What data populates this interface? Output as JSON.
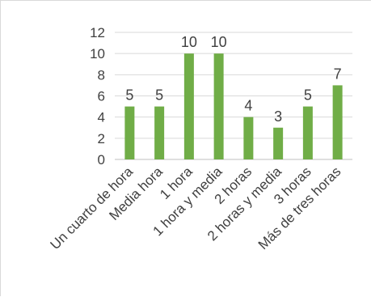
{
  "chart_data": {
    "type": "bar",
    "categories": [
      "Un cuarto de hora",
      "Media hora",
      "1 hora",
      "1 hora y media",
      "2 horas",
      "2 horas y media",
      "3 horas",
      "Más de tres horas"
    ],
    "values": [
      5,
      5,
      10,
      10,
      4,
      3,
      5,
      7
    ],
    "ylim": [
      0,
      12
    ],
    "yticks": [
      0,
      2,
      4,
      6,
      8,
      10,
      12
    ],
    "grid": true,
    "data_labels": true,
    "bar_color": "#70ad47",
    "grid_color": "#d9d9d9",
    "text_color": "#404040",
    "title": "",
    "xlabel": "",
    "ylabel": ""
  }
}
